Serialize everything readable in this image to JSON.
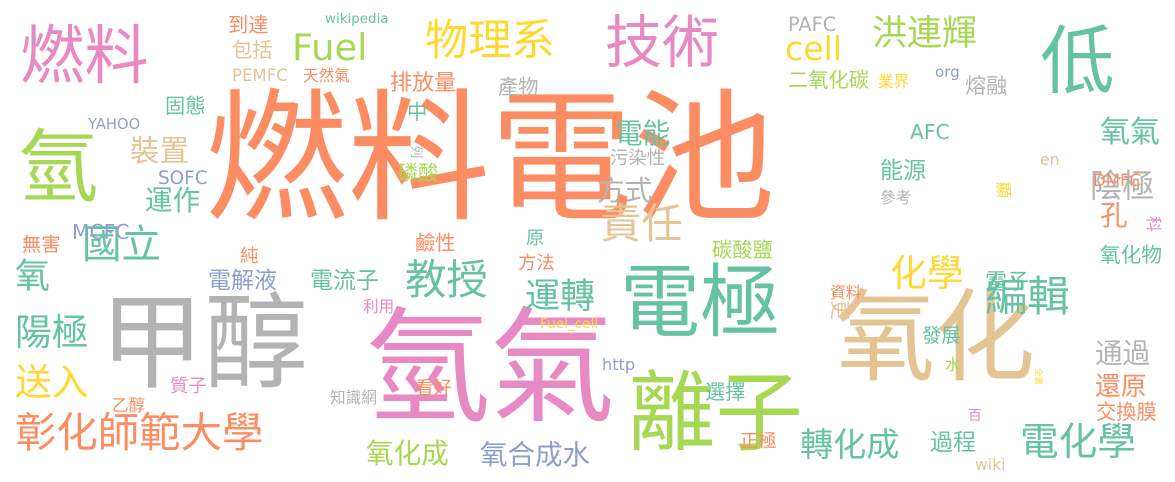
{
  "palette": {
    "orange": "#fc8d62",
    "green": "#66c2a5",
    "pink": "#e78ac3",
    "lime": "#a6d854",
    "yellow": "#ffd92f",
    "tan": "#e5c494",
    "gray": "#b3b3b3",
    "blue": "#8da0cb"
  },
  "words": [
    {
      "text": "燃料電池",
      "color": "#fc8d62"
    },
    {
      "text": "甲醇",
      "color": "#b3b3b3"
    },
    {
      "text": "氫氣",
      "color": "#e78ac3"
    },
    {
      "text": "氧化",
      "color": "#e5c494"
    },
    {
      "text": "離子",
      "color": "#a6d854"
    },
    {
      "text": "電極",
      "color": "#66c2a5"
    },
    {
      "text": "燃料",
      "color": "#e78ac3"
    },
    {
      "text": "技術",
      "color": "#e78ac3"
    },
    {
      "text": "低",
      "color": "#66c2a5"
    },
    {
      "text": "氫",
      "color": "#a6d854"
    },
    {
      "text": "物理系",
      "color": "#ffd92f"
    },
    {
      "text": "Fuel",
      "color": "#a6d854"
    },
    {
      "text": "cell",
      "color": "#ffd92f"
    },
    {
      "text": "洪連輝",
      "color": "#a6d854"
    },
    {
      "text": "國立",
      "color": "#66c2a5"
    },
    {
      "text": "彰化師範大學",
      "color": "#fc8d62"
    },
    {
      "text": "教授",
      "color": "#66c2a5"
    },
    {
      "text": "運轉",
      "color": "#66c2a5"
    },
    {
      "text": "責任",
      "color": "#e5c494"
    },
    {
      "text": "化學",
      "color": "#ffd92f"
    },
    {
      "text": "編輯",
      "color": "#66c2a5"
    },
    {
      "text": "電化學",
      "color": "#66c2a5"
    },
    {
      "text": "轉化成",
      "color": "#66c2a5"
    },
    {
      "text": "裝置",
      "color": "#e5c494"
    },
    {
      "text": "電能",
      "color": "#66c2a5"
    },
    {
      "text": "方式",
      "color": "#b3b3b3"
    },
    {
      "text": "運作",
      "color": "#66c2a5"
    },
    {
      "text": "氧",
      "color": "#66c2a5"
    },
    {
      "text": "陽極",
      "color": "#66c2a5"
    },
    {
      "text": "送入",
      "color": "#ffd92f"
    },
    {
      "text": "氧氣",
      "color": "#66c2a5"
    },
    {
      "text": "陰極",
      "color": "#b3b3b3"
    },
    {
      "text": "孔",
      "color": "#fc8d62"
    },
    {
      "text": "氧化物",
      "color": "#66c2a5"
    },
    {
      "text": "電子",
      "color": "#66c2a5"
    },
    {
      "text": "通過",
      "color": "#b3b3b3"
    },
    {
      "text": "還原",
      "color": "#fc8d62"
    },
    {
      "text": "交換膜",
      "color": "#fc8d62"
    },
    {
      "text": "過程",
      "color": "#66c2a5"
    },
    {
      "text": "電解液",
      "color": "#8da0cb"
    },
    {
      "text": "電流子",
      "color": "#66c2a5"
    },
    {
      "text": "氧化成",
      "color": "#a6d854"
    },
    {
      "text": "氧合成水",
      "color": "#8da0cb"
    },
    {
      "text": "排放量",
      "color": "#fc8d62"
    },
    {
      "text": "產物",
      "color": "#b3b3b3"
    },
    {
      "text": "二氧化碳",
      "color": "#a6d854"
    },
    {
      "text": "業界",
      "color": "#ffd92f"
    },
    {
      "text": "熔融",
      "color": "#b3b3b3"
    },
    {
      "text": "org",
      "color": "#8da0cb"
    },
    {
      "text": "PAFC",
      "color": "#b3b3b3"
    },
    {
      "text": "wikipedia",
      "color": "#66c2a5"
    },
    {
      "text": "到達",
      "color": "#fc8d62"
    },
    {
      "text": "包括",
      "color": "#e5c494"
    },
    {
      "text": "PEMFC",
      "color": "#e5c494"
    },
    {
      "text": "天然氣",
      "color": "#fc8d62"
    },
    {
      "text": "固態",
      "color": "#66c2a5"
    },
    {
      "text": "YAHOO",
      "color": "#8da0cb"
    },
    {
      "text": "SOFC",
      "color": "#8da0cb"
    },
    {
      "text": "MCFC",
      "color": "#8da0cb"
    },
    {
      "text": "無害",
      "color": "#fc8d62"
    },
    {
      "text": "中",
      "color": "#66c2a5"
    },
    {
      "text": "列",
      "color": "#b3b3b3"
    },
    {
      "text": "污染性",
      "color": "#b3b3b3"
    },
    {
      "text": "磷酸",
      "color": "#a6d854"
    },
    {
      "text": "AFC",
      "color": "#66c2a5"
    },
    {
      "text": "DMFC",
      "color": "#fc8d62"
    },
    {
      "text": "en",
      "color": "#e5c494"
    },
    {
      "text": "能源",
      "color": "#66c2a5"
    },
    {
      "text": "參考",
      "color": "#b3b3b3"
    },
    {
      "text": "顯",
      "color": "#ffd92f"
    },
    {
      "text": "科",
      "color": "#e78ac3"
    },
    {
      "text": "純",
      "color": "#fc8d62"
    },
    {
      "text": "鹼性",
      "color": "#fc8d62"
    },
    {
      "text": "原",
      "color": "#66c2a5"
    },
    {
      "text": "方法",
      "color": "#fc8d62"
    },
    {
      "text": "碳酸鹽",
      "color": "#a6d854"
    },
    {
      "text": "資料",
      "color": "#fc8d62"
    },
    {
      "text": "利用",
      "color": "#e78ac3"
    },
    {
      "text": "更",
      "color": "#e5c494"
    },
    {
      "text": "Fuel_cell",
      "color": "#ffd92f"
    },
    {
      "text": "發展",
      "color": "#66c2a5"
    },
    {
      "text": "http",
      "color": "#8da0cb"
    },
    {
      "text": "質子",
      "color": "#e78ac3"
    },
    {
      "text": "知識網",
      "color": "#b3b3b3"
    },
    {
      "text": "乙醇",
      "color": "#fc8d62"
    },
    {
      "text": "看好",
      "color": "#fc8d62"
    },
    {
      "text": "水",
      "color": "#a6d854"
    },
    {
      "text": "選擇",
      "color": "#66c2a5"
    },
    {
      "text": "正極",
      "color": "#fc8d62"
    },
    {
      "text": "全書",
      "color": "#ffd92f"
    },
    {
      "text": "百",
      "color": "#e78ac3"
    },
    {
      "text": "wiki",
      "color": "#e5c494"
    }
  ]
}
